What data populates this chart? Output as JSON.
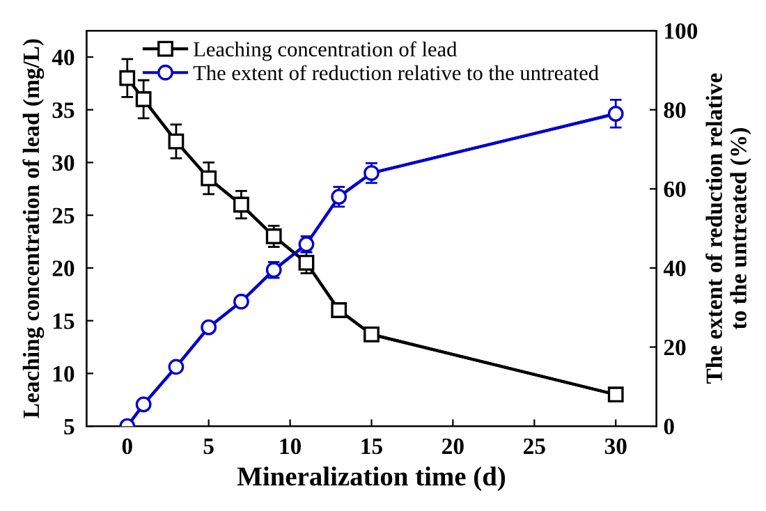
{
  "chart_data": {
    "type": "line",
    "xlabel": "Mineralization time (d)",
    "ylabel": "Leaching concentration of lead (mg/L)",
    "y2label": "The extent of reduction relative\nto the untreated (%)",
    "x": [
      0,
      1,
      3,
      5,
      7,
      9,
      11,
      13,
      15,
      30
    ],
    "series": [
      {
        "name": "Leaching concentration of lead",
        "color": "#000000",
        "marker": "square",
        "values": [
          38,
          36,
          32,
          28.5,
          26,
          23,
          20.5,
          16,
          13.7,
          8
        ],
        "errors": [
          1.8,
          1.8,
          1.6,
          1.5,
          1.3,
          1,
          1,
          0.6,
          0.4,
          0.3
        ]
      },
      {
        "name": "The extent of reduction relative to the untreated",
        "color": "#0000cc",
        "marker": "circle",
        "axis": "y2",
        "values": [
          0,
          5.5,
          15,
          25,
          31.5,
          39.5,
          46,
          58,
          64,
          79
        ],
        "errors": [
          1,
          1,
          1,
          1,
          1,
          2,
          2,
          2.5,
          2.5,
          3.5
        ]
      }
    ],
    "xlim": [
      -2.5,
      32.5
    ],
    "xticks": [
      0,
      5,
      10,
      15,
      20,
      25,
      30
    ],
    "ylim": [
      5,
      42.5
    ],
    "yticks": [
      5,
      10,
      15,
      20,
      25,
      30,
      35,
      40
    ],
    "y2lim": [
      0,
      100
    ],
    "y2ticks": [
      0,
      20,
      40,
      60,
      80,
      100
    ],
    "grid": false,
    "legend": "top"
  }
}
